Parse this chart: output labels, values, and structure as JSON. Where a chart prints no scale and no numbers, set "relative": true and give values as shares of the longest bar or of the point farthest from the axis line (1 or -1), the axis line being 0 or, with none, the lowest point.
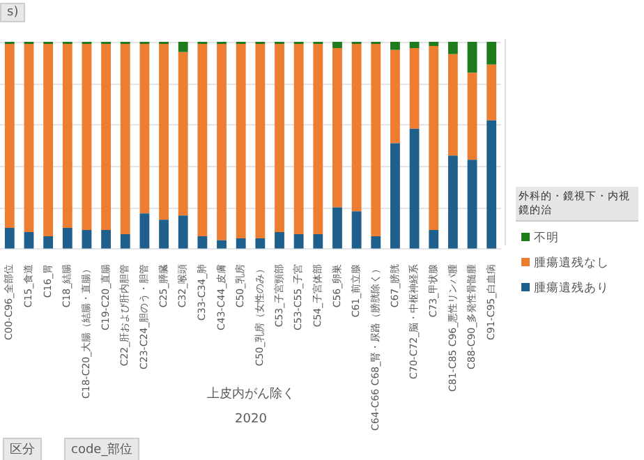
{
  "chart_data": {
    "type": "bar",
    "stacked": true,
    "relative": true,
    "grid": "y",
    "legend": "right",
    "legend_title": "外科的・鏡視下・内視鏡的治",
    "categories": [
      "C00-C96_全部位",
      "C15_食道",
      "C16_胃",
      "C18_結腸",
      "C18-C20_大腸（結腸・直腸）",
      "C19-C20_直腸",
      "C22_肝および肝内胆管",
      "C23-C24_胆のう・胆管",
      "C25_膵臓",
      "C32_喉頭",
      "C33-C34_肺",
      "C43-C44_皮膚",
      "C50_乳房",
      "C50_乳房（女性のみ）",
      "C53_子宮頸部",
      "C53-C55_子宮",
      "C54_子宮体部",
      "C56_卵巣",
      "C61_前立腺",
      "C64-C66 C68_腎・尿路（膀胱除く）",
      "C67_膀胱",
      "C70-C72_脳・中枢神経系",
      "C73_甲状腺",
      "C81-C85 C96_悪性リンパ腫",
      "C88-C90_多発性骨髄腫",
      "C91-C95_白血病"
    ],
    "series": [
      {
        "name": "腫瘍遺残あり",
        "color": "#1f5f8b",
        "values": [
          0.1,
          0.08,
          0.06,
          0.1,
          0.09,
          0.09,
          0.07,
          0.17,
          0.14,
          0.16,
          0.06,
          0.04,
          0.05,
          0.05,
          0.08,
          0.07,
          0.07,
          0.2,
          0.18,
          0.06,
          0.51,
          0.58,
          0.09,
          0.45,
          0.43,
          0.62
        ]
      },
      {
        "name": "腫瘍遺残なし",
        "color": "#ed7d31",
        "values": [
          0.89,
          0.91,
          0.93,
          0.89,
          0.9,
          0.9,
          0.92,
          0.82,
          0.85,
          0.79,
          0.93,
          0.95,
          0.94,
          0.94,
          0.91,
          0.92,
          0.92,
          0.77,
          0.81,
          0.93,
          0.45,
          0.39,
          0.89,
          0.49,
          0.42,
          0.27
        ]
      },
      {
        "name": "不明",
        "color": "#1e7b1e",
        "values": [
          0.01,
          0.01,
          0.01,
          0.01,
          0.01,
          0.01,
          0.01,
          0.01,
          0.01,
          0.05,
          0.01,
          0.01,
          0.01,
          0.01,
          0.01,
          0.01,
          0.01,
          0.03,
          0.01,
          0.01,
          0.04,
          0.03,
          0.02,
          0.06,
          0.15,
          0.11
        ]
      }
    ],
    "annotations": [
      "上皮内がん除く",
      "2020",
      "s)",
      "区分",
      "code_部位"
    ]
  }
}
